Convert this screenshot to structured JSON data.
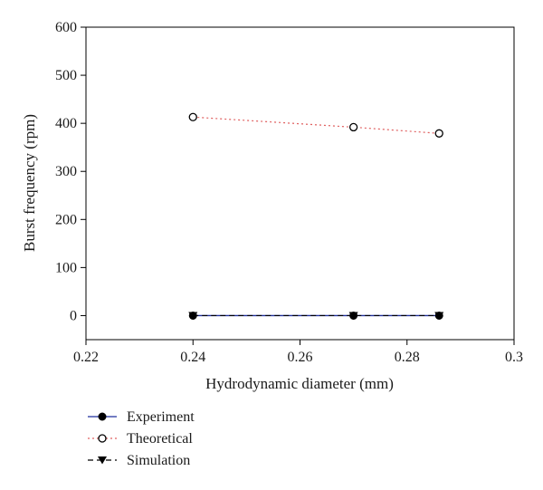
{
  "chart_data": {
    "type": "line",
    "xlabel": "Hydrodynamic diameter (mm)",
    "ylabel": "Burst frequency (rpm)",
    "xlim": [
      0.22,
      0.3
    ],
    "ylim": [
      -50,
      600
    ],
    "x_ticks": [
      0.22,
      0.24,
      0.26,
      0.28,
      0.3
    ],
    "x_tick_labels": [
      "0.22",
      "0.24",
      "0.26",
      "0.28",
      "0.3"
    ],
    "y_ticks": [
      0,
      100,
      200,
      300,
      400,
      500,
      600
    ],
    "y_tick_labels": [
      "0",
      "100",
      "200",
      "300",
      "400",
      "500",
      "600"
    ],
    "grid": false,
    "legend_position": "bottom-left, below plot",
    "x": [
      0.24,
      0.27,
      0.286
    ],
    "series": [
      {
        "name": "Experiment",
        "values": [
          0,
          0,
          0
        ],
        "color": "#1f2f9e",
        "line_style": "solid",
        "marker": "filled-circle"
      },
      {
        "name": "Theoretical",
        "values": [
          413,
          392,
          379
        ],
        "color": "#e06060",
        "line_style": "dotted",
        "marker": "open-circle"
      },
      {
        "name": "Simulation",
        "values": [
          0,
          0,
          0
        ],
        "color": "#000000",
        "line_style": "dashed",
        "marker": "filled-triangle-down"
      }
    ]
  }
}
